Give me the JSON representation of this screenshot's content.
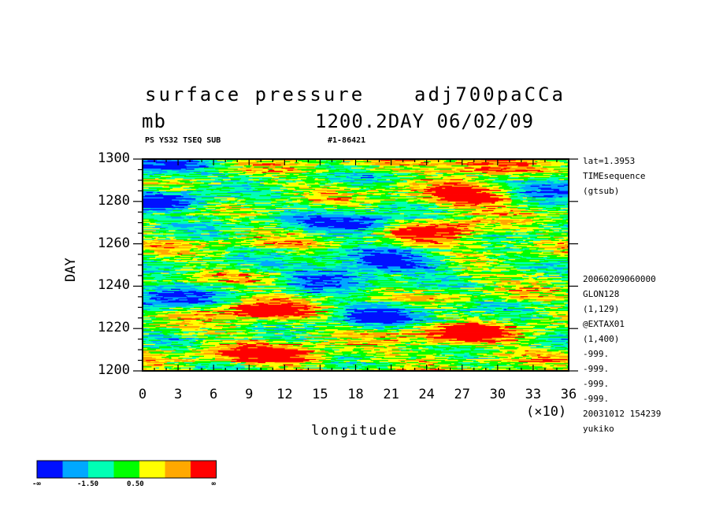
{
  "header": {
    "title_left": "surface pressure",
    "title_right": "adj700paCCa",
    "unit": "mb",
    "subtitle": "1200.2DAY 06/02/09",
    "tag_left": "PS YS32 TSEQ SUB",
    "tag_right": "#1-86421"
  },
  "side_info": [
    "lat=1.3953",
    "TIMEsequence",
    "(gtsub)",
    "20060209060000",
    "GLON128",
    "(1,129)",
    "@EXTAX01",
    "(1,400)",
    "-999.",
    "-999.",
    "-999.",
    "-999.",
    "20031012 154239",
    "yukiko"
  ],
  "colorbar": {
    "colors": [
      "#0010ff",
      "#00a8ff",
      "#00ffb4",
      "#00ff00",
      "#ffff00",
      "#ffa800",
      "#ff0000"
    ],
    "labels": [
      "-∞",
      "-1.50",
      "0.50",
      "∞"
    ]
  },
  "chart_data": {
    "type": "heatmap",
    "title": "surface pressure",
    "xlabel": "longitude",
    "ylabel": "DAY",
    "x_multiplier": "(×10)",
    "xlim": [
      0,
      36
    ],
    "ylim": [
      1200,
      1300
    ],
    "x_ticks": [
      "0",
      "3",
      "6",
      "9",
      "12",
      "15",
      "18",
      "21",
      "24",
      "27",
      "30",
      "33",
      "36"
    ],
    "y_ticks": [
      "1200",
      "1220",
      "1240",
      "1260",
      "1280",
      "1300"
    ],
    "features": [
      {
        "x": 10,
        "y": 1229,
        "value": "high"
      },
      {
        "x": 11,
        "y": 1208,
        "value": "high"
      },
      {
        "x": 27,
        "y": 1217,
        "value": "high"
      },
      {
        "x": 28,
        "y": 1282,
        "value": "high"
      },
      {
        "x": 29,
        "y": 1296,
        "value": "high"
      },
      {
        "x": 25,
        "y": 1266,
        "value": "high"
      },
      {
        "x": 20,
        "y": 1227,
        "value": "low"
      },
      {
        "x": 18,
        "y": 1270,
        "value": "low"
      },
      {
        "x": 21,
        "y": 1252,
        "value": "low"
      },
      {
        "x": 2,
        "y": 1280,
        "value": "low"
      },
      {
        "x": 2,
        "y": 1235,
        "value": "low"
      },
      {
        "x": 1,
        "y": 1297,
        "value": "low"
      },
      {
        "x": 35,
        "y": 1287,
        "value": "low"
      },
      {
        "x": 16,
        "y": 1245,
        "value": "low"
      }
    ]
  }
}
